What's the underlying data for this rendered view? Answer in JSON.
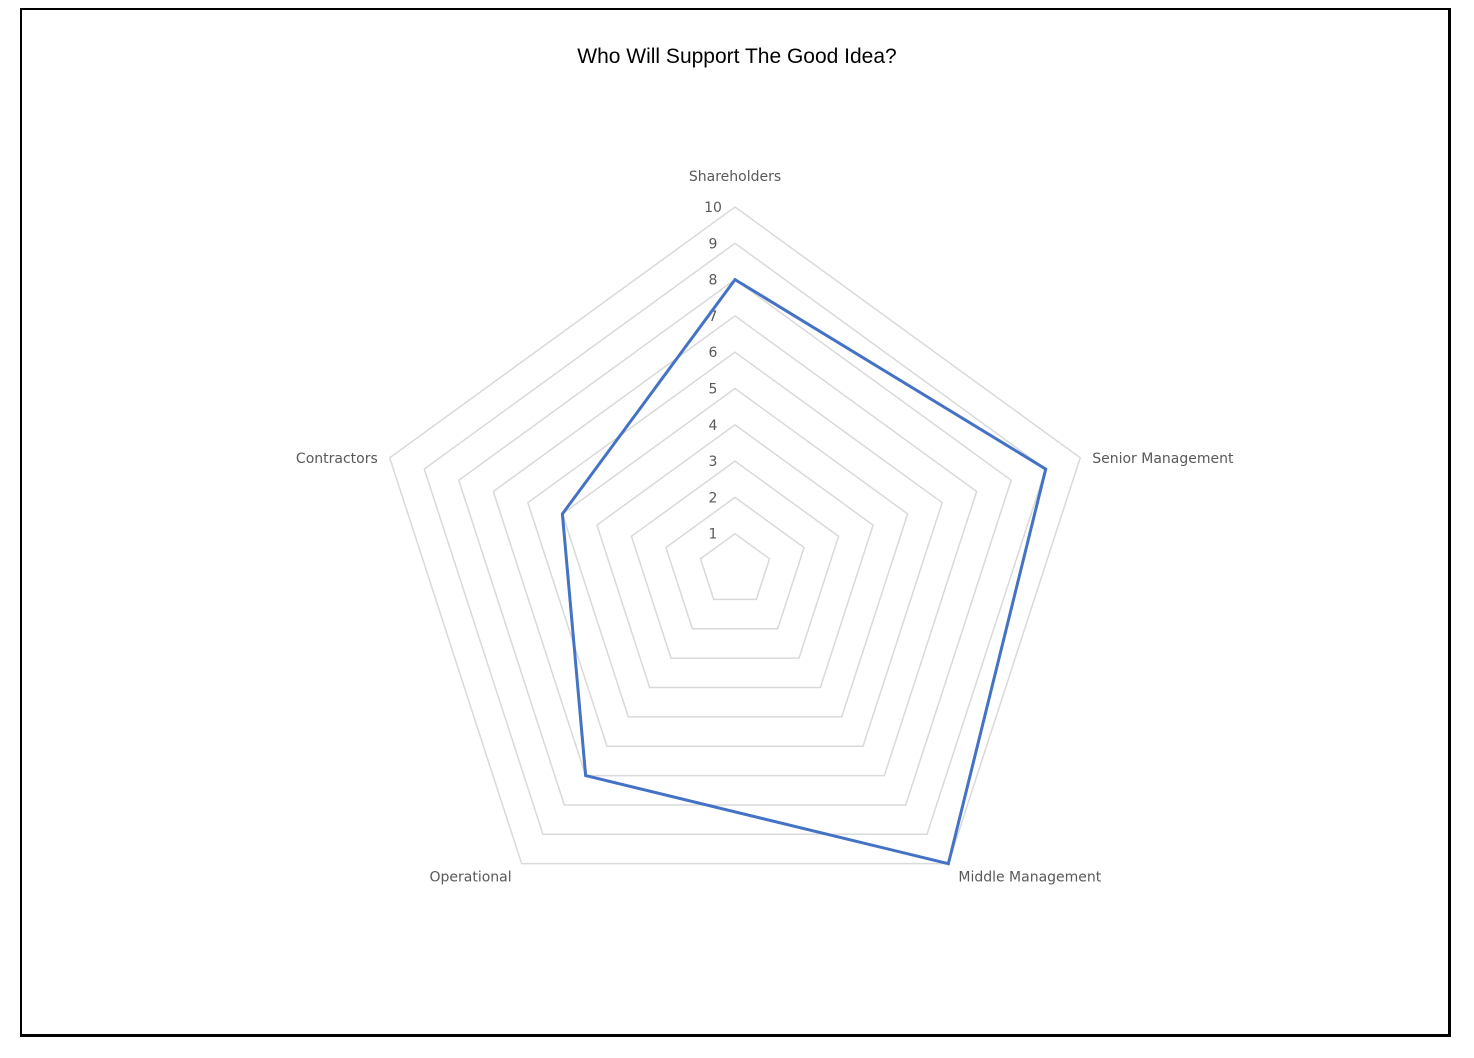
{
  "chart_data": {
    "type": "radar",
    "title": "Who Will Support The Good Idea?",
    "categories": [
      "Shareholders",
      "Senior Management",
      "Middle Management",
      "Operational",
      "Contractors"
    ],
    "series": [
      {
        "values": [
          8,
          9,
          10,
          7,
          5
        ],
        "color": "#4472C4"
      }
    ],
    "rlim": [
      0,
      10
    ],
    "ticks": [
      1,
      2,
      3,
      4,
      5,
      6,
      7,
      8,
      9,
      10
    ],
    "grid": true,
    "legend": "none"
  }
}
